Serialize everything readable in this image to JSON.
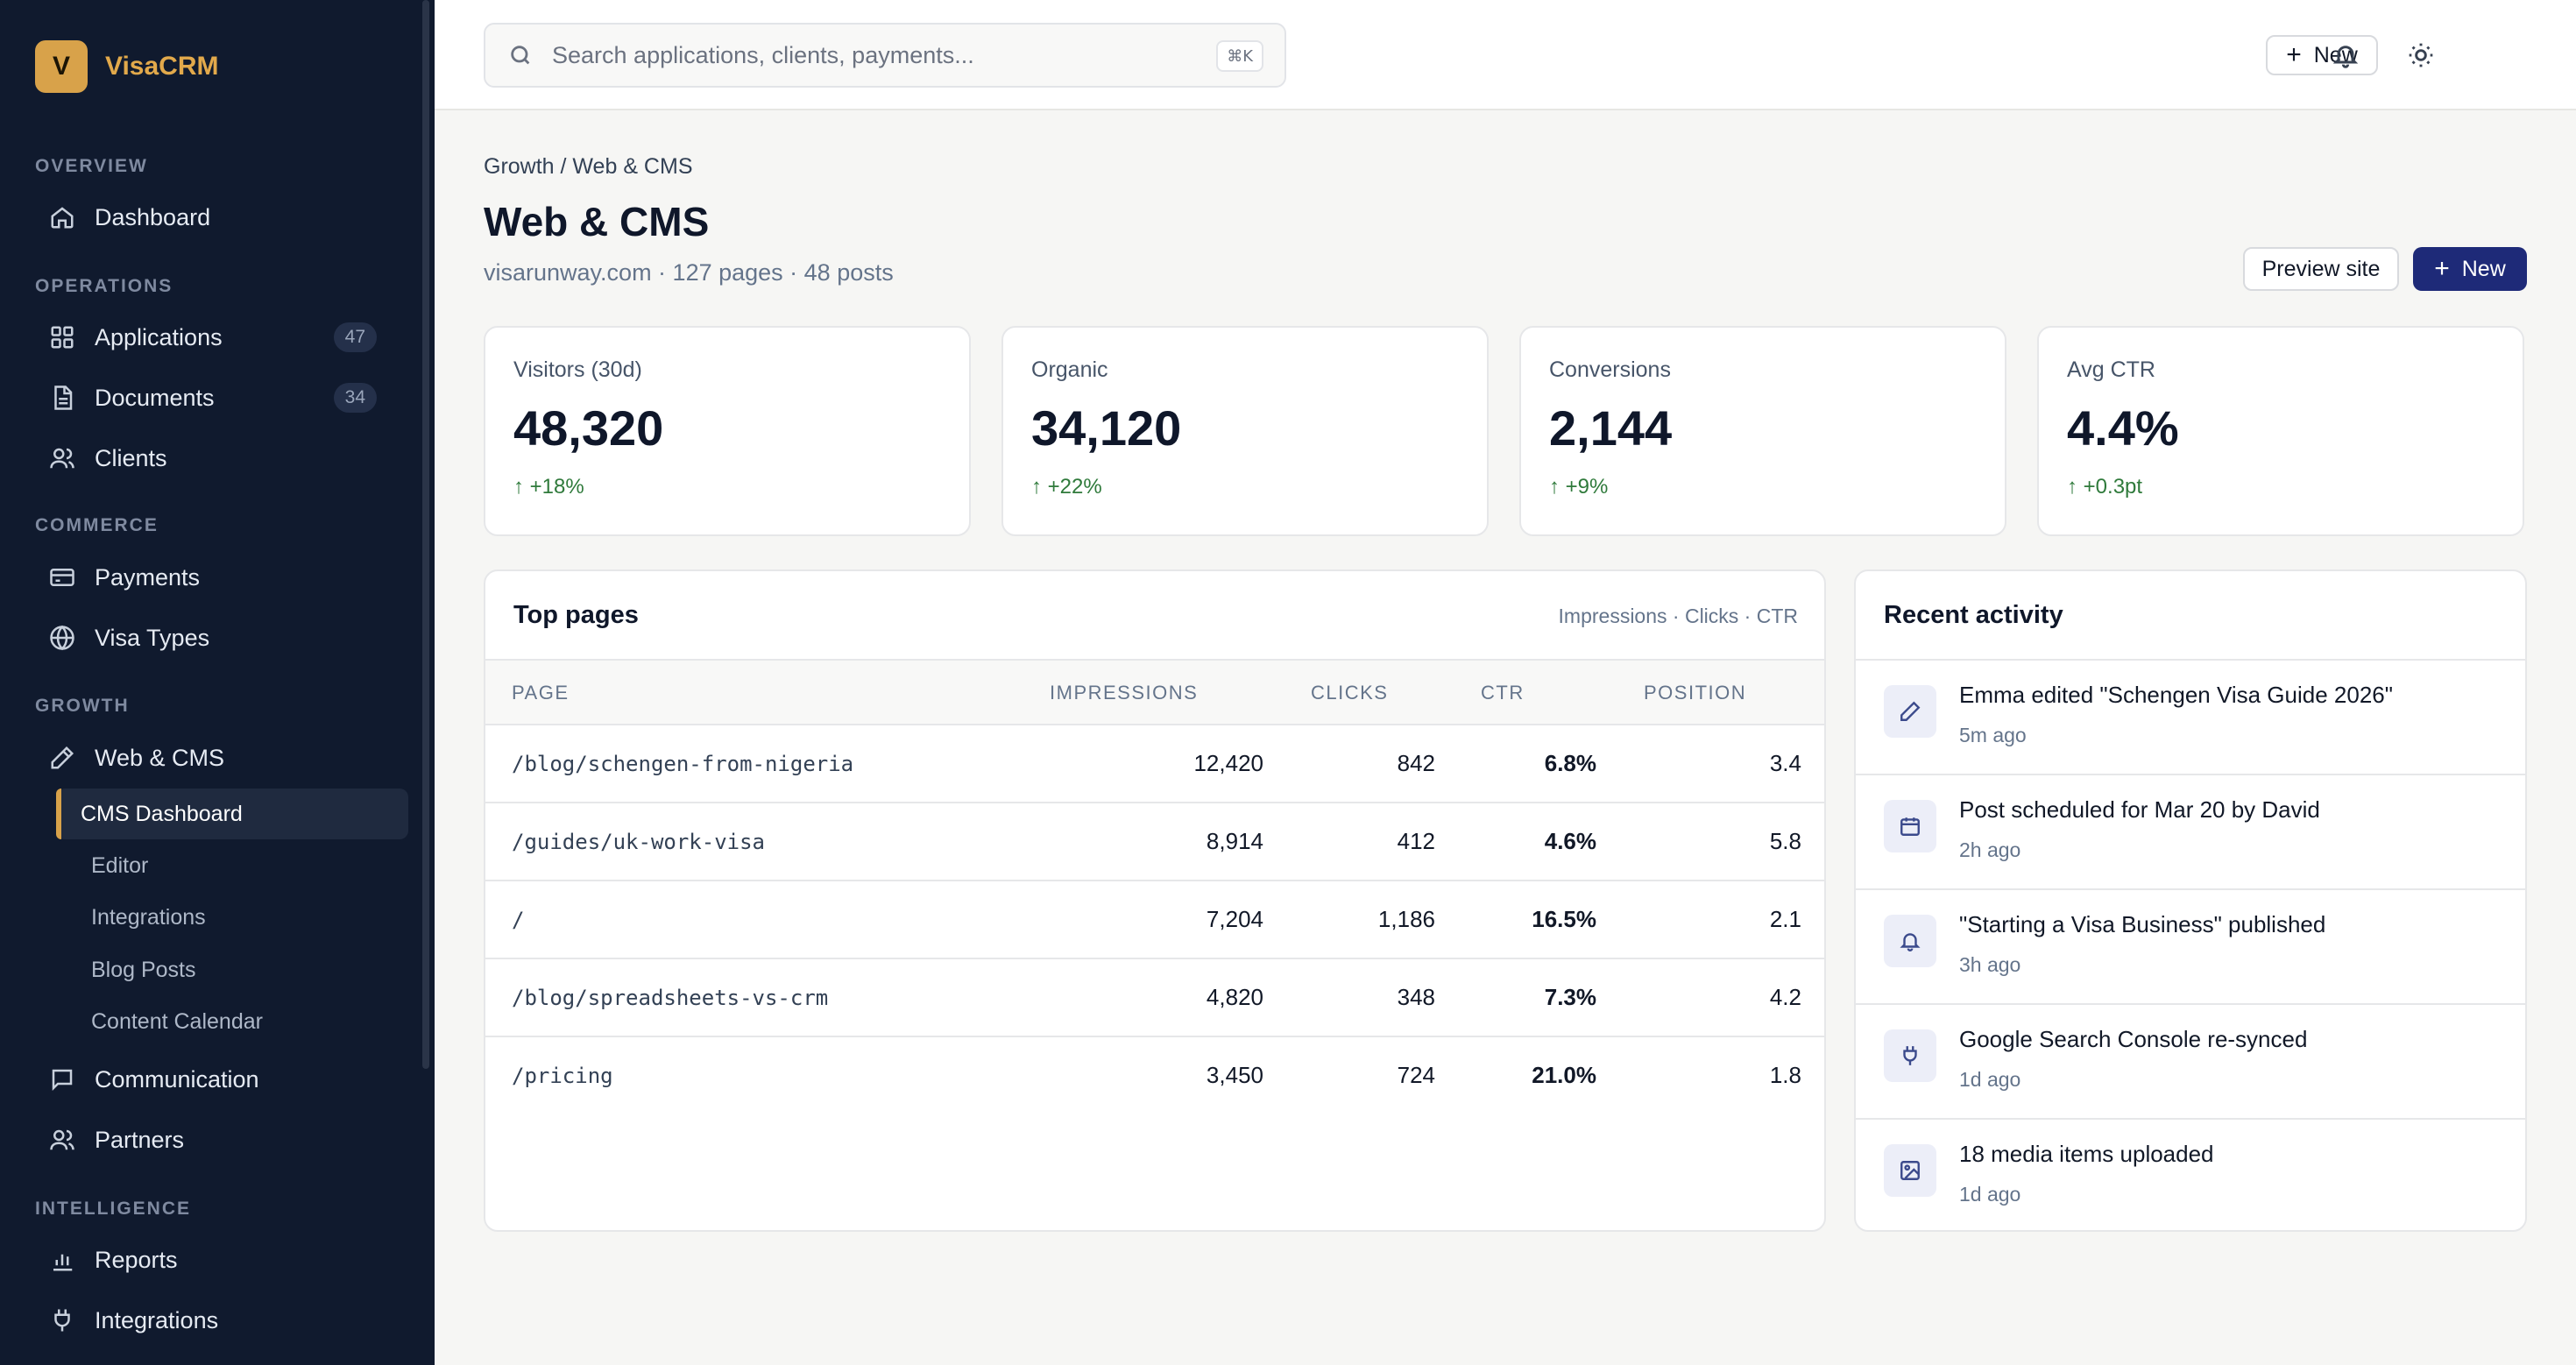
{
  "brand": {
    "logo": "V",
    "name": "VisaCRM"
  },
  "sidebar": {
    "sections": [
      {
        "label": "OVERVIEW"
      },
      {
        "label": "OPERATIONS"
      },
      {
        "label": "COMMERCE"
      },
      {
        "label": "GROWTH"
      },
      {
        "label": "INTELLIGENCE"
      }
    ],
    "items": {
      "dashboard": {
        "label": "Dashboard",
        "icon": "home-icon"
      },
      "applications": {
        "label": "Applications",
        "badge": "47",
        "icon": "grid-icon"
      },
      "documents": {
        "label": "Documents",
        "badge": "34",
        "icon": "document-icon"
      },
      "clients": {
        "label": "Clients",
        "icon": "users-icon"
      },
      "payments": {
        "label": "Payments",
        "icon": "credit-card-icon"
      },
      "visa_types": {
        "label": "Visa Types",
        "icon": "globe-icon"
      },
      "web_cms": {
        "label": "Web & CMS",
        "icon": "pencil-icon"
      },
      "communication": {
        "label": "Communication",
        "icon": "message-icon"
      },
      "partners": {
        "label": "Partners",
        "icon": "users-icon"
      },
      "reports": {
        "label": "Reports",
        "icon": "bar-chart-icon"
      },
      "integrations": {
        "label": "Integrations",
        "icon": "plug-icon"
      }
    },
    "sub_items": [
      {
        "label": "CMS Dashboard",
        "active": true
      },
      {
        "label": "Editor"
      },
      {
        "label": "Integrations"
      },
      {
        "label": "Blog Posts"
      },
      {
        "label": "Content Calendar"
      }
    ]
  },
  "topbar": {
    "search_placeholder": "Search applications, clients, payments...",
    "shortcut": "⌘K",
    "new_label": "New"
  },
  "page": {
    "breadcrumb": "Growth / Web & CMS",
    "title": "Web & CMS",
    "subtitle": "visarunway.com · 127 pages · 48 posts",
    "preview_label": "Preview site",
    "new_label": "New"
  },
  "stats": [
    {
      "label": "Visitors (30d)",
      "value": "48,320",
      "delta": "↑ +18%"
    },
    {
      "label": "Organic",
      "value": "34,120",
      "delta": "↑ +22%"
    },
    {
      "label": "Conversions",
      "value": "2,144",
      "delta": "↑ +9%"
    },
    {
      "label": "Avg CTR",
      "value": "4.4%",
      "delta": "↑ +0.3pt"
    }
  ],
  "top_pages": {
    "title": "Top pages",
    "meta": "Impressions · Clicks · CTR",
    "columns": [
      "PAGE",
      "IMPRESSIONS",
      "CLICKS",
      "CTR",
      "POSITION"
    ],
    "rows": [
      [
        "/blog/schengen-from-nigeria",
        "12,420",
        "842",
        "6.8%",
        "3.4"
      ],
      [
        "/guides/uk-work-visa",
        "8,914",
        "412",
        "4.6%",
        "5.8"
      ],
      [
        "/",
        "7,204",
        "1,186",
        "16.5%",
        "2.1"
      ],
      [
        "/blog/spreadsheets-vs-crm",
        "4,820",
        "348",
        "7.3%",
        "4.2"
      ],
      [
        "/pricing",
        "3,450",
        "724",
        "21.0%",
        "1.8"
      ]
    ]
  },
  "activity": {
    "title": "Recent activity",
    "items": [
      {
        "text": "Emma edited \"Schengen Visa Guide 2026\"",
        "time": "5m ago",
        "icon": "pencil-icon"
      },
      {
        "text": "Post scheduled for Mar 20 by David",
        "time": "2h ago",
        "icon": "calendar-icon"
      },
      {
        "text": "\"Starting a Visa Business\" published",
        "time": "3h ago",
        "icon": "bell-icon"
      },
      {
        "text": "Google Search Console re-synced",
        "time": "1d ago",
        "icon": "plug-icon"
      },
      {
        "text": "18 media items uploaded",
        "time": "1d ago",
        "icon": "image-icon"
      }
    ]
  },
  "colors": {
    "sidebar_bg": "#101a2e",
    "brand_accent": "#d8a24a",
    "primary_button": "#1e2a78",
    "positive": "#2f7a3b"
  }
}
